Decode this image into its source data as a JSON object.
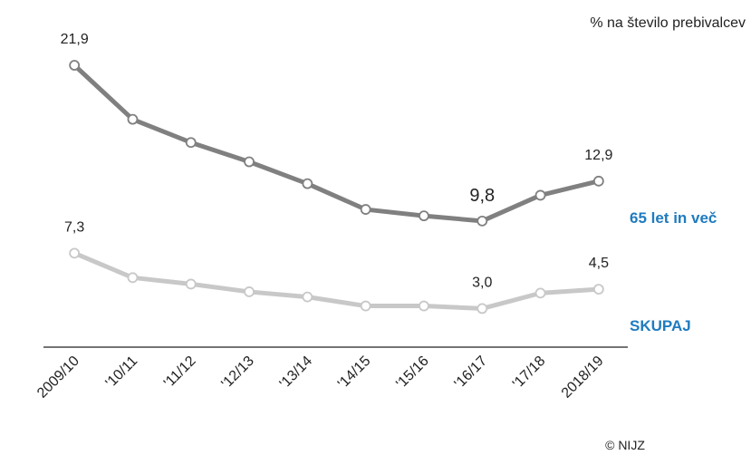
{
  "chart_data": {
    "type": "line",
    "subtitle": "% na število  prebivalcev",
    "credit": "© NIJZ",
    "categories": [
      "2009/10",
      "'10/11",
      "'11/12",
      "'12/13",
      "'13/14",
      "'14/15",
      "'15/16",
      "'16/17",
      "'17/18",
      "2018/19"
    ],
    "series": [
      {
        "name": "65 let in več",
        "color": "#808080",
        "label_color": "#1f7bbf",
        "values": [
          21.9,
          17.7,
          15.9,
          14.4,
          12.7,
          10.7,
          10.2,
          9.8,
          11.8,
          12.9
        ],
        "value_labels": [
          "21,9",
          null,
          null,
          null,
          null,
          null,
          null,
          "9,8",
          null,
          "12,9"
        ]
      },
      {
        "name": "SKUPAJ",
        "color": "#c8c8c8",
        "label_color": "#1f7bbf",
        "values": [
          7.3,
          5.4,
          4.9,
          4.3,
          3.9,
          3.2,
          3.2,
          3.0,
          4.2,
          4.5
        ],
        "value_labels": [
          "7,3",
          null,
          null,
          null,
          null,
          null,
          null,
          "3,0",
          null,
          "4,5"
        ]
      }
    ],
    "ylim": [
      0,
      25
    ]
  }
}
